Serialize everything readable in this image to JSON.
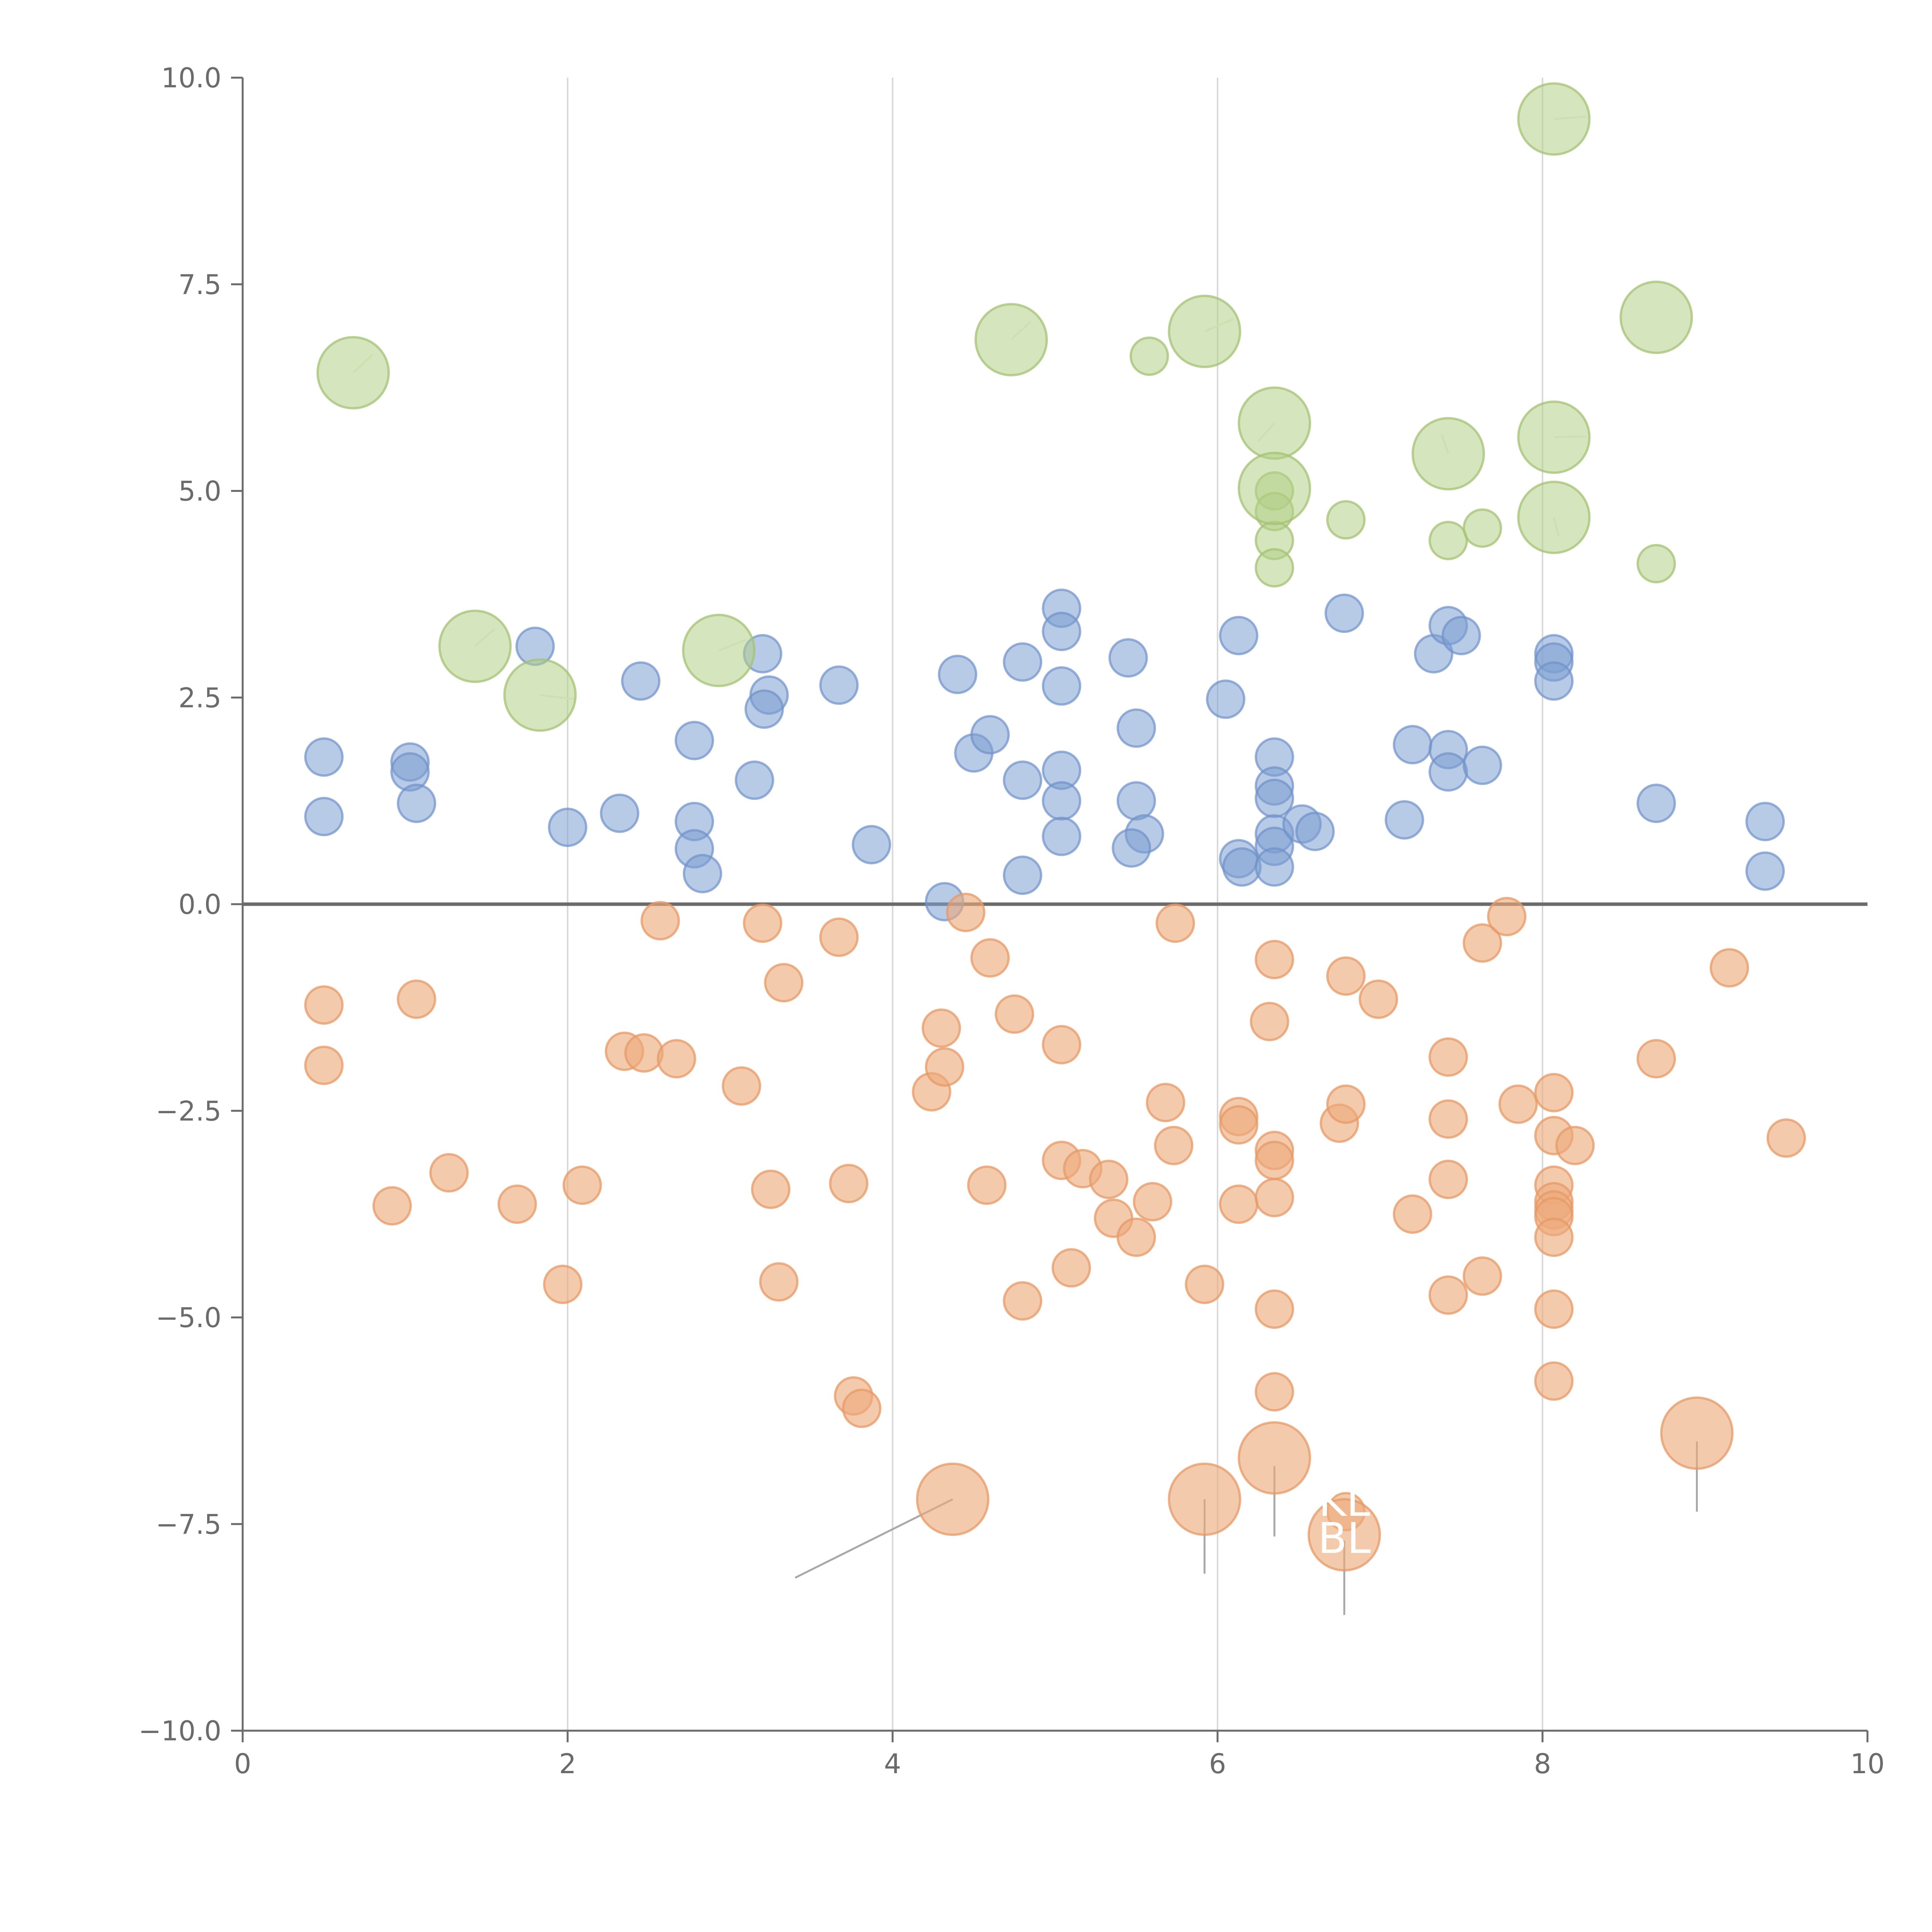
{
  "chart_data": {
    "type": "scatter",
    "title": "",
    "xlabel": "",
    "ylabel": "",
    "xlim": [
      0,
      10
    ],
    "ylim": [
      -10,
      10
    ],
    "grid": "vertical",
    "x_ticks": [
      "0",
      "2",
      "4",
      "6",
      "8",
      "10"
    ],
    "y_ticks": [
      "10.0",
      "7.5",
      "5.0",
      "2.5",
      "0.0",
      "−2.5",
      "−5.0",
      "−7.5",
      "−10.0"
    ],
    "x_tick_values": [
      0,
      2,
      4,
      6,
      8,
      10
    ],
    "y_tick_values": [
      10,
      7.5,
      5,
      2.5,
      0,
      -2.5,
      -5,
      -7.5,
      -10
    ],
    "reference_line_y": 0,
    "colors": {
      "blue": "#7c9fd2",
      "orange": "#eea97a",
      "green": "#b3cf86",
      "axis": "#6b6b6b",
      "grid": "#d9d9d9"
    },
    "series": [
      {
        "name": "blue",
        "class": "dot-blue",
        "size": 1,
        "points": [
          [
            0.5,
            1.78
          ],
          [
            0.5,
            1.06
          ],
          [
            1.03,
            1.72
          ],
          [
            1.03,
            1.6
          ],
          [
            1.07,
            1.22
          ],
          [
            1.8,
            3.12
          ],
          [
            2.0,
            0.93
          ],
          [
            2.32,
            1.1
          ],
          [
            2.45,
            2.7
          ],
          [
            2.78,
            1.98
          ],
          [
            2.78,
            1.0
          ],
          [
            2.78,
            0.67
          ],
          [
            2.83,
            0.37
          ],
          [
            3.15,
            1.5
          ],
          [
            3.2,
            3.03
          ],
          [
            3.24,
            2.53
          ],
          [
            3.21,
            2.36
          ],
          [
            3.67,
            2.65
          ],
          [
            3.87,
            0.72
          ],
          [
            4.32,
            0.03
          ],
          [
            4.4,
            2.78
          ],
          [
            4.5,
            1.83
          ],
          [
            4.6,
            2.05
          ],
          [
            4.8,
            2.93
          ],
          [
            4.8,
            1.5
          ],
          [
            4.8,
            0.35
          ],
          [
            5.04,
            3.58
          ],
          [
            5.04,
            3.3
          ],
          [
            5.04,
            2.64
          ],
          [
            5.04,
            1.62
          ],
          [
            5.04,
            1.25
          ],
          [
            5.04,
            0.82
          ],
          [
            5.45,
            2.98
          ],
          [
            5.5,
            2.13
          ],
          [
            5.5,
            1.25
          ],
          [
            5.55,
            0.85
          ],
          [
            5.47,
            0.68
          ],
          [
            6.05,
            2.48
          ],
          [
            6.13,
            3.25
          ],
          [
            6.13,
            0.55
          ],
          [
            6.15,
            0.45
          ],
          [
            6.35,
            1.78
          ],
          [
            6.35,
            1.43
          ],
          [
            6.35,
            1.28
          ],
          [
            6.35,
            0.85
          ],
          [
            6.35,
            0.7
          ],
          [
            6.35,
            0.45
          ],
          [
            6.52,
            0.97
          ],
          [
            6.6,
            0.88
          ],
          [
            6.78,
            3.52
          ],
          [
            7.15,
            1.02
          ],
          [
            7.2,
            1.93
          ],
          [
            7.33,
            3.03
          ],
          [
            7.42,
            3.37
          ],
          [
            7.5,
            3.25
          ],
          [
            7.42,
            1.87
          ],
          [
            7.42,
            1.6
          ],
          [
            7.63,
            1.68
          ],
          [
            8.07,
            3.03
          ],
          [
            8.07,
            2.93
          ],
          [
            8.07,
            2.7
          ],
          [
            8.7,
            1.22
          ],
          [
            9.37,
            1.0
          ],
          [
            9.37,
            0.4
          ]
        ]
      },
      {
        "name": "orange",
        "class": "dot-orange",
        "size": 1,
        "points": [
          [
            0.5,
            -1.22
          ],
          [
            0.5,
            -1.95
          ],
          [
            1.07,
            -1.15
          ],
          [
            0.92,
            -3.65
          ],
          [
            1.27,
            -3.25
          ],
          [
            1.69,
            -3.63
          ],
          [
            1.97,
            -4.6
          ],
          [
            2.09,
            -3.4
          ],
          [
            2.35,
            -1.78
          ],
          [
            2.47,
            -1.8
          ],
          [
            2.57,
            -0.2
          ],
          [
            2.67,
            -1.87
          ],
          [
            3.07,
            -2.2
          ],
          [
            3.2,
            -0.23
          ],
          [
            3.25,
            -3.45
          ],
          [
            3.33,
            -0.95
          ],
          [
            3.3,
            -4.57
          ],
          [
            3.67,
            -0.4
          ],
          [
            3.73,
            -3.38
          ],
          [
            3.76,
            -5.95
          ],
          [
            3.81,
            -6.1
          ],
          [
            4.24,
            -2.27
          ],
          [
            4.3,
            -1.5
          ],
          [
            4.32,
            -1.97
          ],
          [
            4.45,
            -0.1
          ],
          [
            4.6,
            -0.65
          ],
          [
            4.58,
            -3.4
          ],
          [
            4.75,
            -1.33
          ],
          [
            4.8,
            -4.8
          ],
          [
            5.04,
            -1.7
          ],
          [
            5.04,
            -3.1
          ],
          [
            5.1,
            -4.4
          ],
          [
            5.17,
            -3.2
          ],
          [
            5.33,
            -3.33
          ],
          [
            5.36,
            -3.8
          ],
          [
            5.5,
            -4.03
          ],
          [
            5.6,
            -3.6
          ],
          [
            5.68,
            -2.4
          ],
          [
            5.73,
            -2.92
          ],
          [
            5.74,
            -0.23
          ],
          [
            5.92,
            -4.6
          ],
          [
            6.13,
            -2.57
          ],
          [
            6.13,
            -2.67
          ],
          [
            6.13,
            -3.63
          ],
          [
            6.32,
            -1.42
          ],
          [
            6.35,
            -0.67
          ],
          [
            6.35,
            -2.98
          ],
          [
            6.35,
            -3.1
          ],
          [
            6.35,
            -3.55
          ],
          [
            6.35,
            -4.9
          ],
          [
            6.35,
            -5.9
          ],
          [
            6.75,
            -2.65
          ],
          [
            6.79,
            -2.42
          ],
          [
            6.79,
            -0.87
          ],
          [
            6.79,
            -7.35
          ],
          [
            6.99,
            -1.15
          ],
          [
            7.2,
            -3.75
          ],
          [
            7.42,
            -1.85
          ],
          [
            7.42,
            -2.6
          ],
          [
            7.42,
            -3.33
          ],
          [
            7.42,
            -4.73
          ],
          [
            7.63,
            -0.47
          ],
          [
            7.63,
            -4.5
          ],
          [
            7.78,
            -0.15
          ],
          [
            7.85,
            -2.42
          ],
          [
            8.07,
            -2.28
          ],
          [
            8.07,
            -2.8
          ],
          [
            8.07,
            -3.4
          ],
          [
            8.07,
            -3.6
          ],
          [
            8.07,
            -3.7
          ],
          [
            8.07,
            -3.78
          ],
          [
            8.07,
            -4.03
          ],
          [
            8.07,
            -4.9
          ],
          [
            8.07,
            -5.77
          ],
          [
            8.2,
            -2.92
          ],
          [
            8.7,
            -1.87
          ],
          [
            9.15,
            -0.77
          ],
          [
            9.5,
            -2.83
          ]
        ]
      },
      {
        "name": "orange-large",
        "class": "dot-orange",
        "size": 2,
        "points": [
          [
            4.37,
            -7.2
          ],
          [
            5.92,
            -7.2
          ],
          [
            6.35,
            -6.7
          ],
          [
            6.78,
            -7.63
          ],
          [
            8.95,
            -6.4
          ]
        ]
      },
      {
        "name": "green",
        "class": "dot-green",
        "size": 1,
        "points": [
          [
            5.58,
            6.63
          ],
          [
            6.35,
            5.0
          ],
          [
            6.35,
            4.75
          ],
          [
            6.35,
            4.4
          ],
          [
            6.35,
            4.07
          ],
          [
            6.79,
            4.65
          ],
          [
            7.42,
            4.4
          ],
          [
            7.63,
            4.55
          ],
          [
            8.7,
            4.12
          ]
        ]
      },
      {
        "name": "green-large",
        "class": "dot-green",
        "size": 2,
        "points": [
          [
            0.68,
            6.43
          ],
          [
            1.43,
            3.12
          ],
          [
            1.83,
            2.53
          ],
          [
            2.93,
            3.07
          ],
          [
            4.73,
            6.83
          ],
          [
            5.92,
            6.93
          ],
          [
            6.35,
            5.82
          ],
          [
            6.35,
            5.03
          ],
          [
            7.42,
            5.45
          ],
          [
            8.07,
            9.5
          ],
          [
            8.07,
            5.65
          ],
          [
            8.07,
            4.68
          ],
          [
            8.7,
            7.1
          ]
        ]
      }
    ],
    "annotation_texts": [
      "KL",
      "BL"
    ],
    "annotation_positions": [
      [
        6.78,
        -7.4
      ],
      [
        6.78,
        -7.85
      ]
    ]
  }
}
